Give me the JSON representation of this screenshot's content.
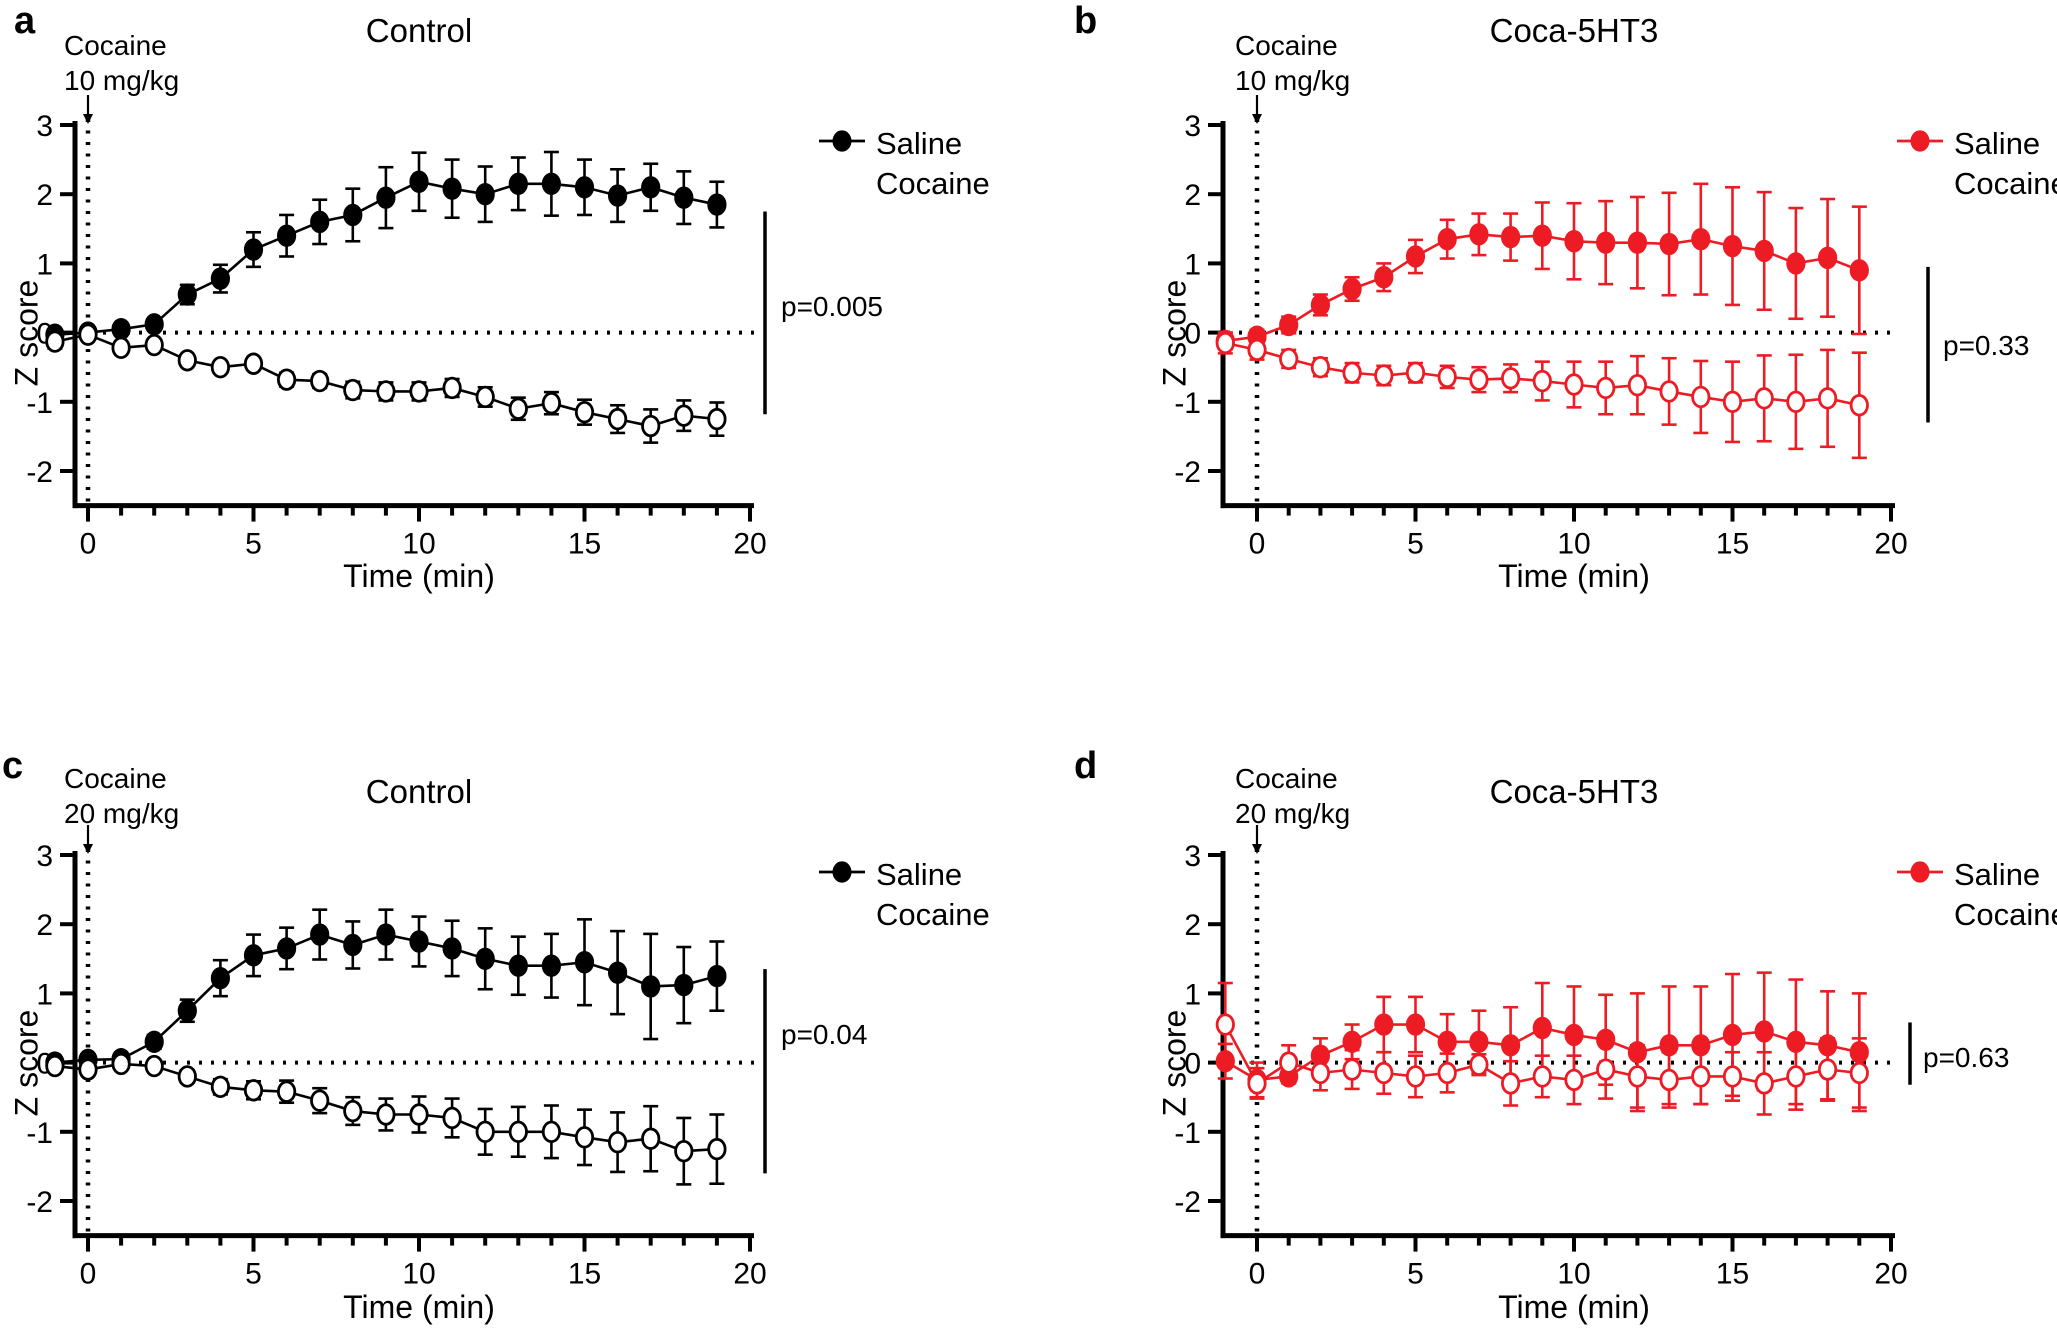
{
  "figure": {
    "background": "#FFFFFF",
    "colors": {
      "control_group": "#000000",
      "coca5ht3_group": "#ED1C24"
    },
    "panels": [
      {
        "letter": "a",
        "title": "Control",
        "injection": {
          "line1": "Cocaine",
          "line2": "10 mg/kg",
          "time_min": 0
        },
        "ylabel": "Z score",
        "xlabel": "Time (min)",
        "p_label": "p=0.005",
        "group_color": "#000000",
        "chart_data": {
          "type": "line",
          "title": "Control",
          "xlabel": "Time (min)",
          "ylabel": "Z score",
          "x": [
            -1,
            0,
            1,
            2,
            3,
            4,
            5,
            6,
            7,
            8,
            9,
            10,
            11,
            12,
            13,
            14,
            15,
            16,
            17,
            18,
            19
          ],
          "x_ticks": [
            0,
            5,
            10,
            15,
            20
          ],
          "y_ticks": [
            3,
            2,
            1,
            0,
            -1,
            -2
          ],
          "xlim": [
            -1.5,
            20
          ],
          "ylim": [
            -2.5,
            3
          ],
          "zero_dotted_line": 0,
          "injection_dotted_line_at_x": 0,
          "p_value_text": "p=0.005",
          "sig_bar": {
            "z_top": 1.75,
            "z_bottom": -1.18
          },
          "legend_position": "right-top",
          "series": [
            {
              "name": "Saline",
              "marker": "open",
              "color": "#000000",
              "values": [
                -0.13,
                -0.03,
                -0.22,
                -0.18,
                -0.4,
                -0.5,
                -0.45,
                -0.68,
                -0.7,
                -0.83,
                -0.85,
                -0.85,
                -0.8,
                -0.93,
                -1.1,
                -1.02,
                -1.15,
                -1.25,
                -1.35,
                -1.2,
                -1.25
              ],
              "errors": [
                0.1,
                0.06,
                0.06,
                0.06,
                0.07,
                0.08,
                0.08,
                0.1,
                0.1,
                0.12,
                0.13,
                0.13,
                0.13,
                0.14,
                0.16,
                0.16,
                0.18,
                0.2,
                0.24,
                0.22,
                0.24
              ]
            },
            {
              "name": "Cocaine",
              "marker": "filled",
              "color": "#000000",
              "values": [
                -0.03,
                0.0,
                0.05,
                0.12,
                0.55,
                0.78,
                1.2,
                1.4,
                1.6,
                1.7,
                1.95,
                2.18,
                2.08,
                2.0,
                2.15,
                2.15,
                2.1,
                1.98,
                2.1,
                1.95,
                1.85
              ],
              "errors": [
                0.06,
                0.05,
                0.05,
                0.08,
                0.14,
                0.2,
                0.25,
                0.3,
                0.32,
                0.38,
                0.44,
                0.42,
                0.42,
                0.4,
                0.38,
                0.46,
                0.4,
                0.38,
                0.34,
                0.38,
                0.33
              ]
            }
          ]
        }
      },
      {
        "letter": "b",
        "title": "Coca-5HT3",
        "injection": {
          "line1": "Cocaine",
          "line2": "10 mg/kg",
          "time_min": 0
        },
        "ylabel": "Z score",
        "xlabel": "Time (min)",
        "p_label": "p=0.33",
        "group_color": "#ED1C24",
        "chart_data": {
          "type": "line",
          "title": "Coca-5HT3",
          "xlabel": "Time (min)",
          "ylabel": "Z score",
          "x": [
            -1,
            0,
            1,
            2,
            3,
            4,
            5,
            6,
            7,
            8,
            9,
            10,
            11,
            12,
            13,
            14,
            15,
            16,
            17,
            18,
            19
          ],
          "x_ticks": [
            0,
            5,
            10,
            15,
            20
          ],
          "y_ticks": [
            3,
            2,
            1,
            0,
            -1,
            -2
          ],
          "xlim": [
            -1.5,
            20
          ],
          "ylim": [
            -2.5,
            3
          ],
          "zero_dotted_line": 0,
          "injection_dotted_line_at_x": 0,
          "p_value_text": "p=0.33",
          "sig_bar": {
            "z_top": 0.95,
            "z_bottom": -1.3
          },
          "legend_position": "right-top",
          "series": [
            {
              "name": "Saline",
              "marker": "open",
              "color": "#ED1C24",
              "values": [
                -0.15,
                -0.25,
                -0.38,
                -0.5,
                -0.58,
                -0.62,
                -0.58,
                -0.64,
                -0.68,
                -0.66,
                -0.7,
                -0.75,
                -0.8,
                -0.76,
                -0.85,
                -0.93,
                -1.0,
                -0.95,
                -1.0,
                -0.95,
                -1.05
              ],
              "errors": [
                0.15,
                0.14,
                0.13,
                0.13,
                0.14,
                0.14,
                0.14,
                0.16,
                0.18,
                0.2,
                0.28,
                0.33,
                0.38,
                0.42,
                0.48,
                0.52,
                0.58,
                0.62,
                0.68,
                0.7,
                0.76
              ]
            },
            {
              "name": "Cocaine",
              "marker": "filled",
              "color": "#ED1C24",
              "values": [
                -0.12,
                -0.06,
                0.11,
                0.4,
                0.63,
                0.8,
                1.1,
                1.35,
                1.42,
                1.38,
                1.4,
                1.32,
                1.3,
                1.3,
                1.28,
                1.35,
                1.25,
                1.18,
                1.0,
                1.08,
                0.9
              ],
              "errors": [
                0.12,
                0.1,
                0.12,
                0.15,
                0.17,
                0.2,
                0.24,
                0.28,
                0.3,
                0.34,
                0.48,
                0.55,
                0.6,
                0.66,
                0.74,
                0.8,
                0.85,
                0.85,
                0.8,
                0.85,
                0.92
              ]
            }
          ]
        }
      },
      {
        "letter": "c",
        "title": "Control",
        "injection": {
          "line1": "Cocaine",
          "line2": "20 mg/kg",
          "time_min": 0
        },
        "ylabel": "Z score",
        "xlabel": "Time (min)",
        "p_label": "p=0.04",
        "group_color": "#000000",
        "chart_data": {
          "type": "line",
          "title": "Control",
          "xlabel": "Time (min)",
          "ylabel": "Z score",
          "x": [
            -1,
            0,
            1,
            2,
            3,
            4,
            5,
            6,
            7,
            8,
            9,
            10,
            11,
            12,
            13,
            14,
            15,
            16,
            17,
            18,
            19
          ],
          "x_ticks": [
            0,
            5,
            10,
            15,
            20
          ],
          "y_ticks": [
            3,
            2,
            1,
            0,
            -1,
            -2
          ],
          "xlim": [
            -1.5,
            20
          ],
          "ylim": [
            -2.5,
            3
          ],
          "zero_dotted_line": 0,
          "injection_dotted_line_at_x": 0,
          "p_value_text": "p=0.04",
          "sig_bar": {
            "z_top": 1.35,
            "z_bottom": -1.6
          },
          "legend_position": "right-top",
          "series": [
            {
              "name": "Saline",
              "marker": "open",
              "color": "#000000",
              "values": [
                -0.05,
                -0.1,
                -0.02,
                -0.05,
                -0.2,
                -0.35,
                -0.4,
                -0.42,
                -0.55,
                -0.7,
                -0.75,
                -0.75,
                -0.8,
                -1.0,
                -1.0,
                -1.0,
                -1.08,
                -1.15,
                -1.1,
                -1.28,
                -1.25
              ],
              "errors": [
                0.07,
                0.07,
                0.07,
                0.07,
                0.09,
                0.11,
                0.13,
                0.16,
                0.18,
                0.2,
                0.23,
                0.26,
                0.28,
                0.33,
                0.36,
                0.38,
                0.4,
                0.43,
                0.47,
                0.48,
                0.5
              ]
            },
            {
              "name": "Cocaine",
              "marker": "filled",
              "color": "#000000",
              "values": [
                0.0,
                0.04,
                0.05,
                0.3,
                0.75,
                1.22,
                1.55,
                1.65,
                1.85,
                1.7,
                1.85,
                1.75,
                1.65,
                1.5,
                1.4,
                1.4,
                1.45,
                1.3,
                1.1,
                1.12,
                1.25
              ],
              "errors": [
                0.06,
                0.05,
                0.06,
                0.1,
                0.16,
                0.26,
                0.3,
                0.3,
                0.36,
                0.34,
                0.36,
                0.36,
                0.4,
                0.44,
                0.42,
                0.46,
                0.62,
                0.6,
                0.76,
                0.55,
                0.5
              ]
            }
          ]
        }
      },
      {
        "letter": "d",
        "title": "Coca-5HT3",
        "injection": {
          "line1": "Cocaine",
          "line2": "20 mg/kg",
          "time_min": 0
        },
        "ylabel": "Z score",
        "xlabel": "Time (min)",
        "p_label": "p=0.63",
        "group_color": "#ED1C24",
        "chart_data": {
          "type": "line",
          "title": "Coca-5HT3",
          "xlabel": "Time (min)",
          "ylabel": "Z score",
          "x": [
            -1,
            0,
            1,
            2,
            3,
            4,
            5,
            6,
            7,
            8,
            9,
            10,
            11,
            12,
            13,
            14,
            15,
            16,
            17,
            18,
            19
          ],
          "x_ticks": [
            0,
            5,
            10,
            15,
            20
          ],
          "y_ticks": [
            3,
            2,
            1,
            0,
            -1,
            -2
          ],
          "xlim": [
            -1.5,
            20
          ],
          "ylim": [
            -2.5,
            3
          ],
          "zero_dotted_line": 0,
          "injection_dotted_line_at_x": 0,
          "p_value_text": "p=0.63",
          "sig_bar": {
            "z_top": 0.58,
            "z_bottom": -0.32
          },
          "legend_position": "right-top",
          "series": [
            {
              "name": "Saline",
              "marker": "open",
              "color": "#ED1C24",
              "values": [
                0.55,
                -0.3,
                0.0,
                -0.15,
                -0.1,
                -0.15,
                -0.2,
                -0.15,
                -0.03,
                -0.3,
                -0.2,
                -0.25,
                -0.1,
                -0.2,
                -0.25,
                -0.2,
                -0.2,
                -0.3,
                -0.2,
                -0.1,
                -0.15
              ],
              "errors": [
                0.6,
                0.22,
                0.25,
                0.25,
                0.28,
                0.3,
                0.3,
                0.28,
                0.15,
                0.32,
                0.3,
                0.35,
                0.42,
                0.45,
                0.4,
                0.4,
                0.35,
                0.45,
                0.48,
                0.45,
                0.5
              ]
            },
            {
              "name": "Cocaine",
              "marker": "filled",
              "color": "#ED1C24",
              "values": [
                0.02,
                -0.25,
                -0.2,
                0.1,
                0.3,
                0.55,
                0.55,
                0.3,
                0.3,
                0.25,
                0.5,
                0.4,
                0.33,
                0.15,
                0.25,
                0.25,
                0.4,
                0.45,
                0.3,
                0.25,
                0.15
              ],
              "errors": [
                0.25,
                0.25,
                0.1,
                0.25,
                0.25,
                0.4,
                0.4,
                0.4,
                0.45,
                0.55,
                0.65,
                0.7,
                0.65,
                0.85,
                0.85,
                0.85,
                0.88,
                0.85,
                0.9,
                0.78,
                0.85
              ]
            }
          ]
        }
      }
    ]
  }
}
